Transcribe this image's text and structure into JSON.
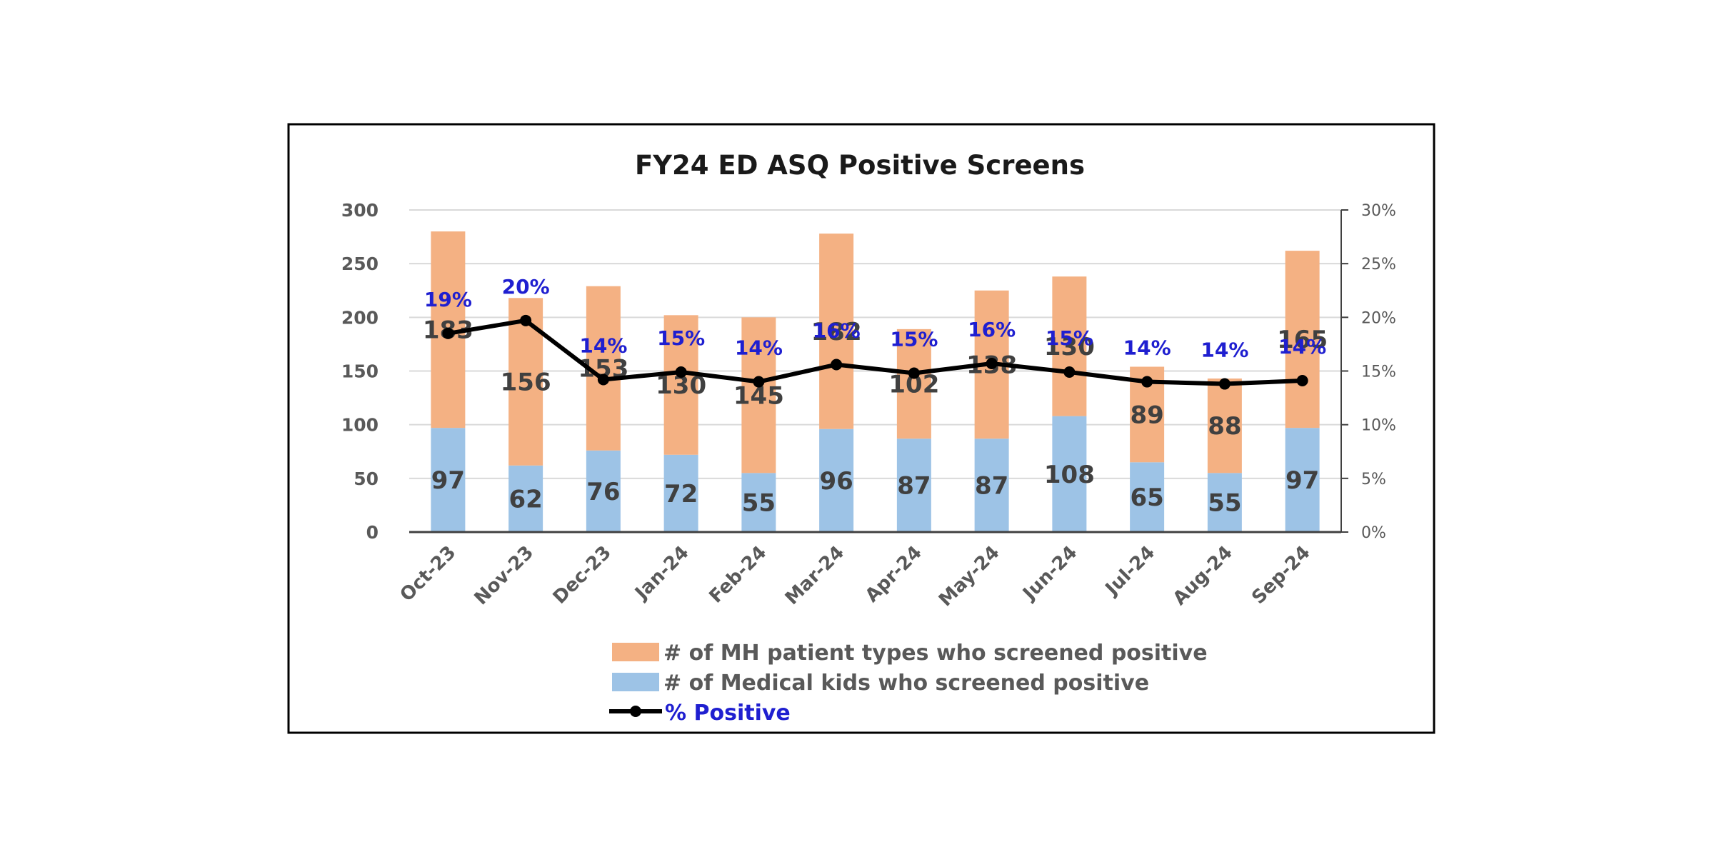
{
  "chart_data": {
    "type": "bar",
    "stacked": true,
    "title": "FY24 ED ASQ Positive Screens",
    "categories": [
      "Oct-23",
      "Nov-23",
      "Dec-23",
      "Jan-24",
      "Feb-24",
      "Mar-24",
      "Apr-24",
      "May-24",
      "Jun-24",
      "Jul-24",
      "Aug-24",
      "Sep-24"
    ],
    "series": [
      {
        "name": "# of Medical kids who screened positive",
        "color": "#9dc3e6",
        "values": [
          97,
          62,
          76,
          72,
          55,
          96,
          87,
          87,
          108,
          65,
          55,
          97
        ]
      },
      {
        "name": "# of MH patient types who screened positive",
        "color": "#f4b183",
        "values": [
          183,
          156,
          153,
          130,
          145,
          182,
          102,
          138,
          130,
          89,
          88,
          165
        ]
      },
      {
        "name": "% Positive",
        "type": "line",
        "axis": "right",
        "color": "#000000",
        "values": [
          18.5,
          19.7,
          14.2,
          14.9,
          14.0,
          15.6,
          14.8,
          15.7,
          14.9,
          14.0,
          13.8,
          14.1
        ],
        "labels": [
          "19%",
          "20%",
          "14%",
          "15%",
          "14%",
          "16%",
          "15%",
          "16%",
          "15%",
          "14%",
          "14%",
          "14%"
        ]
      }
    ],
    "ylim": [
      0,
      300
    ],
    "yticks": [
      "0",
      "50",
      "100",
      "150",
      "200",
      "250",
      "300"
    ],
    "y2lim": [
      0,
      30
    ],
    "y2ticks": [
      "0%",
      "5%",
      "10%",
      "15%",
      "20%",
      "25%",
      "30%"
    ],
    "grid": true,
    "legend_position": "bottom",
    "label_color": "#1f1fd0"
  }
}
